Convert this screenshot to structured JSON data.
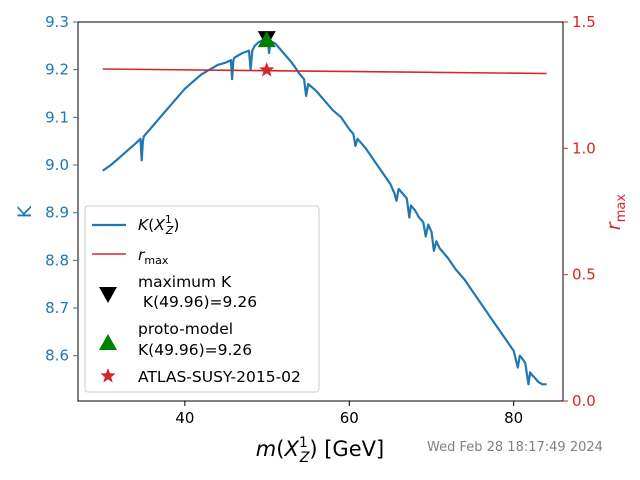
{
  "timestamp": "Wed Feb 28 18:17:49 2024",
  "chart_data": {
    "type": "line",
    "xlabel": "m(X_Z^1) [GeV]",
    "ylabel_left": "K",
    "ylabel_right": "r_max",
    "xlim": [
      27,
      86
    ],
    "ylim_left": [
      8.505,
      9.3
    ],
    "ylim_right": [
      0.0,
      1.5
    ],
    "x_ticks": [
      "40",
      "60",
      "80"
    ],
    "y_ticks_left": [
      "8.6",
      "8.7",
      "8.8",
      "8.9",
      "9.0",
      "9.1",
      "9.2",
      "9.3"
    ],
    "y_ticks_right": [
      "0.0",
      "0.5",
      "1.0",
      "1.5"
    ],
    "colors": {
      "K": "#1f77b4",
      "rmax": "#d62728",
      "max": "#000000",
      "proto": "#008000",
      "tick_left": "#1f77b4",
      "tick_right": "#d62728"
    },
    "series": [
      {
        "name": "K(X_Z^1)",
        "axis": "left",
        "x": [
          30.0,
          31.0,
          32.0,
          33.0,
          34.0,
          34.6,
          34.75,
          34.9,
          35.0,
          36.0,
          37.0,
          38.0,
          39.0,
          40.0,
          41.0,
          42.0,
          43.0,
          44.0,
          45.0,
          45.6,
          45.75,
          45.9,
          46.0,
          47.0,
          47.8,
          48.0,
          48.2,
          48.5,
          49.0,
          49.5,
          49.96,
          50.1,
          50.25,
          50.4,
          51.0,
          52.0,
          53.0,
          54.0,
          54.5,
          54.75,
          55.0,
          56.0,
          57.0,
          58.0,
          59.0,
          60.0,
          60.5,
          60.75,
          61.0,
          62.0,
          63.0,
          64.0,
          65.0,
          65.5,
          65.75,
          66.0,
          66.5,
          67.0,
          67.3,
          67.5,
          68.0,
          68.5,
          69.0,
          69.3,
          69.6,
          70.0,
          70.3,
          70.6,
          71.0,
          72.0,
          73.0,
          74.0,
          75.0,
          76.0,
          77.0,
          78.0,
          79.0,
          80.0,
          80.5,
          80.75,
          81.0,
          81.4,
          81.8,
          82.0,
          82.2,
          82.5,
          83.0,
          83.5,
          84.0
        ],
        "y": [
          8.988,
          9.0,
          9.015,
          9.03,
          9.045,
          9.055,
          9.01,
          9.05,
          9.06,
          9.08,
          9.1,
          9.12,
          9.14,
          9.16,
          9.175,
          9.19,
          9.2,
          9.21,
          9.215,
          9.22,
          9.18,
          9.22,
          9.225,
          9.235,
          9.24,
          9.2,
          9.24,
          9.25,
          9.258,
          9.262,
          9.264,
          9.26,
          9.235,
          9.26,
          9.255,
          9.235,
          9.215,
          9.19,
          9.18,
          9.145,
          9.17,
          9.155,
          9.135,
          9.115,
          9.1,
          9.075,
          9.065,
          9.04,
          9.055,
          9.035,
          9.01,
          8.985,
          8.96,
          8.94,
          8.925,
          8.95,
          8.94,
          8.93,
          8.89,
          8.915,
          8.905,
          8.89,
          8.88,
          8.85,
          8.875,
          8.86,
          8.82,
          8.84,
          8.825,
          8.805,
          8.78,
          8.76,
          8.735,
          8.71,
          8.685,
          8.66,
          8.635,
          8.61,
          8.575,
          8.6,
          8.595,
          8.585,
          8.54,
          8.565,
          8.56,
          8.555,
          8.545,
          8.54,
          8.54
        ]
      },
      {
        "name": "r_max",
        "axis": "right",
        "x": [
          30.0,
          84.0
        ],
        "y": [
          1.314,
          1.296
        ]
      }
    ],
    "markers": [
      {
        "name": "maximum K\n K(49.96)=9.26",
        "axis": "left",
        "x": 49.96,
        "y": 9.264,
        "symbol": "triangle-down"
      },
      {
        "name": "proto-model\nK(49.96)=9.26",
        "axis": "left",
        "x": 49.96,
        "y": 9.264,
        "symbol": "triangle-up"
      },
      {
        "name": "ATLAS-SUSY-2015-02",
        "axis": "right",
        "x": 49.96,
        "y": 1.31,
        "symbol": "star"
      }
    ],
    "legend": {
      "placement": "lower-left",
      "entries": [
        {
          "key": "K",
          "label": "K(X_Z^1)"
        },
        {
          "key": "rmax",
          "label": "r_max"
        },
        {
          "key": "max",
          "lines": [
            "maximum K",
            " K(49.96)=9.26"
          ]
        },
        {
          "key": "proto",
          "lines": [
            "proto-model",
            "K(49.96)=9.26"
          ]
        },
        {
          "key": "star",
          "label": "ATLAS-SUSY-2015-02"
        }
      ]
    }
  }
}
